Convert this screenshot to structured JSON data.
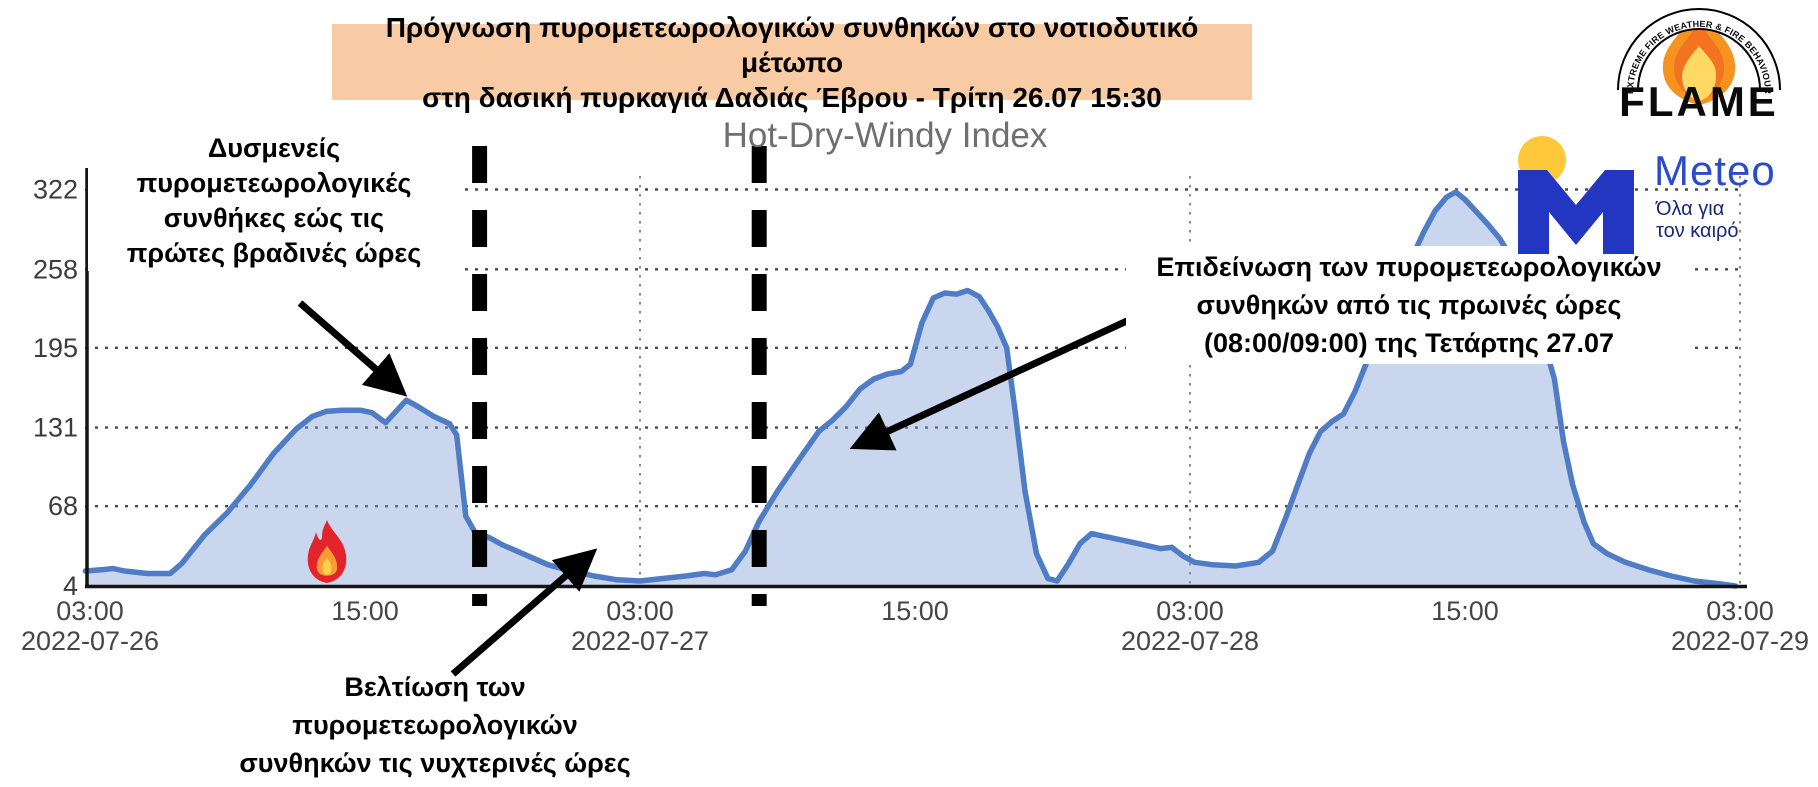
{
  "banner": {
    "line1": "Πρόγνωση πυρομετεωρολογικών συνθηκών στο νοτιοδυτικό μέτωπο",
    "line2": "στη δασική πυρκαγιά Δαδιάς Έβρου - Τρίτη 26.07 15:30"
  },
  "logos": {
    "flame": {
      "arch_text": "EXTREME FIRE WEATHER & FIRE BEHAVIOUR",
      "wordmark": "FLAME"
    },
    "meteo": {
      "letter": "M",
      "wordmark": "Meteo",
      "tagline_line1": "Όλα για",
      "tagline_line2": "τον καιρό",
      "blue": "#2336C1",
      "yellow": "#FFC83B"
    }
  },
  "annotations": {
    "left": {
      "lines": [
        "Δυσμενείς",
        "πυρομετεωρολογικές",
        "συνθήκες εώς τις",
        "πρώτες βραδινές ώρες"
      ],
      "arrow": {
        "from": [
          300,
          303
        ],
        "to": [
          402,
          392
        ]
      }
    },
    "right": {
      "lines": [
        "Επιδείνωση των πυρομετεωρολογικών",
        "συνθηκών από τις πρωινές ώρες",
        "(08:00/09:00) της Τετάρτης 27.07"
      ],
      "arrow": {
        "from": [
          1142,
          314
        ],
        "to": [
          856,
          446
        ]
      }
    },
    "bottom": {
      "lines": [
        "Βελτίωση των",
        "πυρομετεωρολογικών",
        "συνθηκών τις νυχτερινές ώρες"
      ],
      "arrow": {
        "from": [
          453,
          674
        ],
        "to": [
          592,
          553
        ]
      }
    }
  },
  "chart_data": {
    "type": "area",
    "title": "Hot-Dry-Windy Index",
    "xlabel": "",
    "ylabel": "",
    "x_unit": "hours since 2022-07-26 00:00",
    "ylim": [
      4,
      345
    ],
    "grid": true,
    "yticks": [
      322,
      258,
      195,
      131,
      68,
      4
    ],
    "grid_y_values": [
      322,
      258,
      195,
      131,
      68
    ],
    "grid_x_hours": [
      27,
      51,
      75
    ],
    "xticks": [
      {
        "hour": 3,
        "time": "03:00",
        "date": "2022-07-26"
      },
      {
        "hour": 15,
        "time": "15:00",
        "date": ""
      },
      {
        "hour": 27,
        "time": "03:00",
        "date": "2022-07-27"
      },
      {
        "hour": 39,
        "time": "15:00",
        "date": ""
      },
      {
        "hour": 51,
        "time": "03:00",
        "date": "2022-07-28"
      },
      {
        "hour": 63,
        "time": "15:00",
        "date": ""
      },
      {
        "hour": 75,
        "time": "03:00",
        "date": "2022-07-29"
      }
    ],
    "event_lines_hours": [
      20.0,
      32.2
    ],
    "line_color": "#4E7CC5",
    "fill_color": "rgba(126,157,213,0.42)",
    "event_line_color": "#000000",
    "series": [
      {
        "name": "Hot-Dry-Windy Index",
        "points": [
          [
            2.8,
            16
          ],
          [
            3.5,
            17
          ],
          [
            4,
            18
          ],
          [
            4.5,
            16
          ],
          [
            5.5,
            14
          ],
          [
            6.5,
            14
          ],
          [
            7,
            22
          ],
          [
            8,
            45
          ],
          [
            9,
            63
          ],
          [
            10,
            85
          ],
          [
            11,
            110
          ],
          [
            12,
            130
          ],
          [
            12.7,
            140
          ],
          [
            13.3,
            144
          ],
          [
            14,
            145
          ],
          [
            14.8,
            145
          ],
          [
            15.3,
            143
          ],
          [
            15.9,
            135
          ],
          [
            16.8,
            153
          ],
          [
            17.3,
            148
          ],
          [
            18,
            140
          ],
          [
            18.7,
            134
          ],
          [
            19,
            125
          ],
          [
            19.4,
            60
          ],
          [
            19.8,
            47
          ],
          [
            20.4,
            43
          ],
          [
            21,
            37
          ],
          [
            22,
            29
          ],
          [
            23,
            21
          ],
          [
            24,
            16
          ],
          [
            25,
            12
          ],
          [
            26,
            9
          ],
          [
            27,
            8
          ],
          [
            28,
            10
          ],
          [
            29,
            12
          ],
          [
            29.8,
            14
          ],
          [
            30.3,
            13
          ],
          [
            31,
            17
          ],
          [
            31.6,
            32
          ],
          [
            32.2,
            56
          ],
          [
            33,
            80
          ],
          [
            34,
            107
          ],
          [
            34.8,
            128
          ],
          [
            35.4,
            137
          ],
          [
            36,
            148
          ],
          [
            36.6,
            162
          ],
          [
            37.2,
            170
          ],
          [
            37.8,
            174
          ],
          [
            38.4,
            176
          ],
          [
            38.8,
            182
          ],
          [
            39.3,
            215
          ],
          [
            39.8,
            235
          ],
          [
            40.3,
            239
          ],
          [
            40.8,
            238
          ],
          [
            41.3,
            241
          ],
          [
            41.8,
            236
          ],
          [
            42.2,
            225
          ],
          [
            42.6,
            212
          ],
          [
            43,
            195
          ],
          [
            43.4,
            140
          ],
          [
            43.8,
            80
          ],
          [
            44.3,
            30
          ],
          [
            44.8,
            10
          ],
          [
            45.2,
            8
          ],
          [
            45.7,
            22
          ],
          [
            46.2,
            38
          ],
          [
            46.7,
            46
          ],
          [
            47.2,
            44
          ],
          [
            48,
            41
          ],
          [
            49,
            37
          ],
          [
            49.7,
            34
          ],
          [
            50.2,
            35
          ],
          [
            50.7,
            28
          ],
          [
            51.2,
            23
          ],
          [
            52,
            21
          ],
          [
            53,
            20
          ],
          [
            54,
            23
          ],
          [
            54.6,
            32
          ],
          [
            55.2,
            60
          ],
          [
            55.7,
            85
          ],
          [
            56.2,
            110
          ],
          [
            56.7,
            128
          ],
          [
            57.2,
            136
          ],
          [
            57.7,
            142
          ],
          [
            58.2,
            160
          ],
          [
            58.7,
            183
          ],
          [
            59.2,
            207
          ],
          [
            59.7,
            228
          ],
          [
            60.2,
            248
          ],
          [
            60.7,
            268
          ],
          [
            61.2,
            288
          ],
          [
            61.7,
            305
          ],
          [
            62.2,
            316
          ],
          [
            62.6,
            320
          ],
          [
            63,
            314
          ],
          [
            63.5,
            304
          ],
          [
            64,
            294
          ],
          [
            64.5,
            283
          ],
          [
            65,
            268
          ],
          [
            65.5,
            248
          ],
          [
            66,
            222
          ],
          [
            66.5,
            196
          ],
          [
            66.9,
            170
          ],
          [
            67.3,
            120
          ],
          [
            67.7,
            85
          ],
          [
            68.2,
            55
          ],
          [
            68.6,
            38
          ],
          [
            69.2,
            30
          ],
          [
            70,
            23
          ],
          [
            71,
            17
          ],
          [
            72,
            12
          ],
          [
            73,
            8
          ],
          [
            74,
            6
          ],
          [
            74.8,
            4
          ]
        ]
      }
    ]
  },
  "colors": {
    "banner_bg": "#F8CBA4",
    "fire_red": "#E3252B",
    "fire_orange": "#F89C38",
    "fire_yellow": "#FDD24A"
  }
}
